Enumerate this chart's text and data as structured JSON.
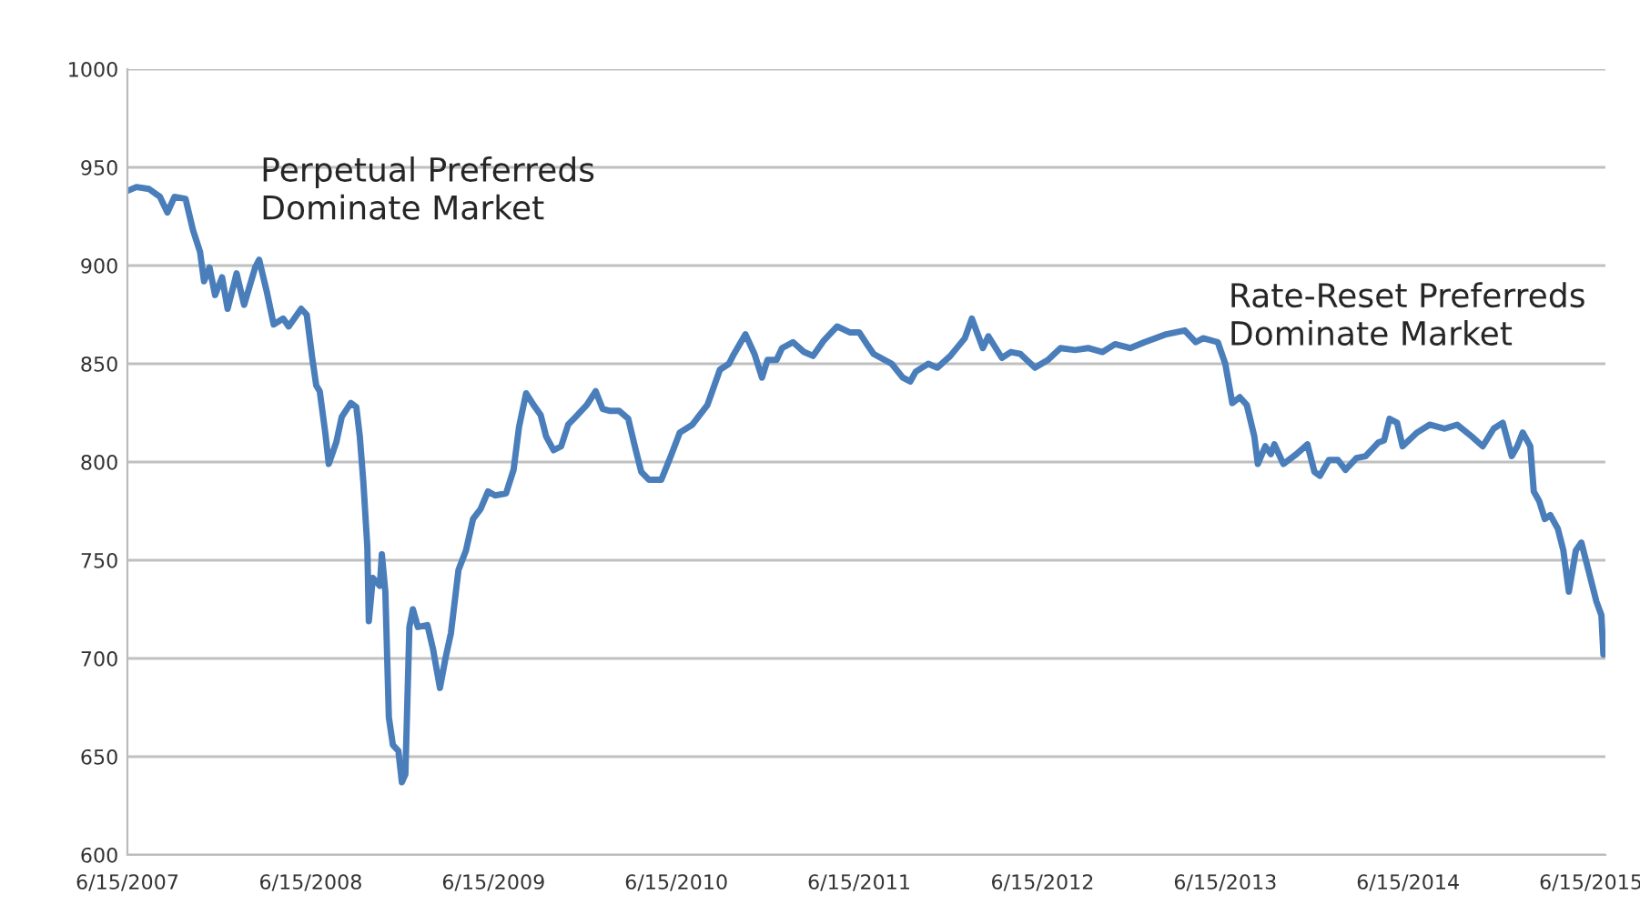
{
  "chart_data": {
    "type": "line",
    "annotations": [
      "Perpetual Preferreds\nDominate Market",
      "Rate-Reset Preferreds\nDominate Market"
    ],
    "x": [
      "2007-06-15",
      "2007-07-03",
      "2007-07-28",
      "2007-08-19",
      "2007-09-03",
      "2007-09-17",
      "2007-10-09",
      "2007-10-24",
      "2007-11-07",
      "2007-11-15",
      "2007-11-26",
      "2007-12-07",
      "2007-12-21",
      "2008-01-01",
      "2008-01-19",
      "2008-02-03",
      "2008-02-25",
      "2008-03-04",
      "2008-03-19",
      "2008-04-02",
      "2008-04-21",
      "2008-05-02",
      "2008-05-27",
      "2008-06-07",
      "2008-06-18",
      "2008-06-26",
      "2008-07-03",
      "2008-07-14",
      "2008-07-21",
      "2008-08-05",
      "2008-08-16",
      "2008-09-03",
      "2008-09-14",
      "2008-09-21",
      "2008-09-28",
      "2008-10-06",
      "2008-10-09",
      "2008-10-17",
      "2008-10-31",
      "2008-11-04",
      "2008-11-11",
      "2008-11-18",
      "2008-11-26",
      "2008-12-07",
      "2008-12-14",
      "2008-12-21",
      "2008-12-29",
      "2009-01-05",
      "2009-01-15",
      "2009-02-03",
      "2009-02-14",
      "2009-02-28",
      "2009-03-11",
      "2009-03-22",
      "2009-04-06",
      "2009-04-21",
      "2009-05-05",
      "2009-05-20",
      "2009-06-04",
      "2009-06-18",
      "2009-07-10",
      "2009-07-25",
      "2009-08-05",
      "2009-08-19",
      "2009-09-03",
      "2009-09-17",
      "2009-09-28",
      "2009-10-13",
      "2009-10-28",
      "2009-11-11",
      "2009-11-26",
      "2009-12-18",
      "2010-01-05",
      "2010-01-19",
      "2010-02-03",
      "2010-02-21",
      "2010-03-11",
      "2010-03-26",
      "2010-04-06",
      "2010-04-21",
      "2010-05-16",
      "2010-06-04",
      "2010-06-22",
      "2010-07-17",
      "2010-08-16",
      "2010-09-10",
      "2010-09-28",
      "2010-10-06",
      "2010-10-31",
      "2010-11-18",
      "2010-12-03",
      "2010-12-14",
      "2011-01-01",
      "2011-01-12",
      "2011-02-03",
      "2011-02-25",
      "2011-03-15",
      "2011-04-06",
      "2011-05-02",
      "2011-05-27",
      "2011-06-15",
      "2011-07-03",
      "2011-07-14",
      "2011-08-19",
      "2011-09-10",
      "2011-09-25",
      "2011-10-06",
      "2011-10-31",
      "2011-11-18",
      "2011-12-14",
      "2012-01-12",
      "2012-01-26",
      "2012-02-17",
      "2012-02-28",
      "2012-03-26",
      "2012-04-13",
      "2012-05-02",
      "2012-05-31",
      "2012-06-26",
      "2012-07-21",
      "2012-08-19",
      "2012-09-14",
      "2012-10-13",
      "2012-11-07",
      "2012-12-07",
      "2013-01-05",
      "2013-02-17",
      "2013-03-26",
      "2013-04-17",
      "2013-05-02",
      "2013-05-31",
      "2013-06-15",
      "2013-06-29",
      "2013-07-14",
      "2013-07-28",
      "2013-08-12",
      "2013-08-19",
      "2013-09-03",
      "2013-09-14",
      "2013-09-21",
      "2013-10-09",
      "2013-11-04",
      "2013-11-26",
      "2013-12-10",
      "2013-12-21",
      "2014-01-08",
      "2014-01-26",
      "2014-02-10",
      "2014-03-04",
      "2014-03-22",
      "2014-04-17",
      "2014-04-28",
      "2014-05-09",
      "2014-05-24",
      "2014-06-04",
      "2014-07-03",
      "2014-07-28",
      "2014-08-27",
      "2014-09-21",
      "2014-10-20",
      "2014-11-11",
      "2014-12-03",
      "2014-12-21",
      "2015-01-08",
      "2015-01-19",
      "2015-01-30",
      "2015-02-14",
      "2015-02-21",
      "2015-03-04",
      "2015-03-15",
      "2015-03-26",
      "2015-04-10",
      "2015-04-21",
      "2015-05-02",
      "2015-05-16",
      "2015-05-27",
      "2015-06-11",
      "2015-06-26",
      "2015-07-06",
      "2015-07-10"
    ],
    "series": [
      {
        "color": "#4a7ebb",
        "values": [
          938,
          940,
          939,
          935,
          927,
          935,
          934,
          918,
          907,
          892,
          899,
          885,
          894,
          878,
          896,
          880,
          899,
          903,
          887,
          870,
          873,
          869,
          878,
          875,
          853,
          839,
          836,
          815,
          799,
          810,
          823,
          830,
          828,
          813,
          790,
          757,
          719,
          741,
          737,
          753,
          734,
          670,
          656,
          653,
          637,
          641,
          716,
          725,
          716,
          717,
          705,
          685,
          700,
          713,
          745,
          755,
          771,
          776,
          785,
          783,
          784,
          796,
          818,
          835,
          829,
          824,
          813,
          806,
          808,
          819,
          823,
          829,
          836,
          827,
          826,
          826,
          822,
          806,
          795,
          791,
          791,
          803,
          815,
          819,
          829,
          847,
          850,
          854,
          865,
          855,
          843,
          852,
          852,
          858,
          861,
          856,
          854,
          862,
          869,
          866,
          866,
          859,
          855,
          850,
          843,
          841,
          846,
          850,
          848,
          854,
          863,
          873,
          858,
          864,
          853,
          856,
          855,
          848,
          852,
          858,
          857,
          858,
          856,
          860,
          858,
          861,
          865,
          867,
          861,
          863,
          861,
          850,
          830,
          833,
          829,
          813,
          799,
          808,
          804,
          809,
          799,
          804,
          809,
          795,
          793,
          801,
          801,
          796,
          802,
          803,
          810,
          811,
          822,
          820,
          808,
          815,
          819,
          817,
          819,
          813,
          808,
          817,
          820,
          803,
          808,
          815,
          808,
          785,
          780,
          771,
          773,
          766,
          755,
          734,
          755,
          759,
          744,
          729,
          722,
          702
        ]
      }
    ],
    "xlim": [
      "2007-06-15",
      "2015-07-14"
    ],
    "ylim": [
      600,
      1000
    ],
    "xticks": [
      {
        "value": "2007-06-15",
        "label": "6/15/2007"
      },
      {
        "value": "2008-06-15",
        "label": "6/15/2008"
      },
      {
        "value": "2009-06-15",
        "label": "6/15/2009"
      },
      {
        "value": "2010-06-15",
        "label": "6/15/2010"
      },
      {
        "value": "2011-06-15",
        "label": "6/15/2011"
      },
      {
        "value": "2012-06-15",
        "label": "6/15/2012"
      },
      {
        "value": "2013-06-15",
        "label": "6/15/2013"
      },
      {
        "value": "2014-06-15",
        "label": "6/15/2014"
      },
      {
        "value": "2015-06-15",
        "label": "6/15/2015"
      }
    ],
    "yticks": [
      600,
      650,
      700,
      750,
      800,
      850,
      900,
      950,
      1000
    ],
    "grid": "y",
    "legend": false,
    "line_style": "solid"
  }
}
